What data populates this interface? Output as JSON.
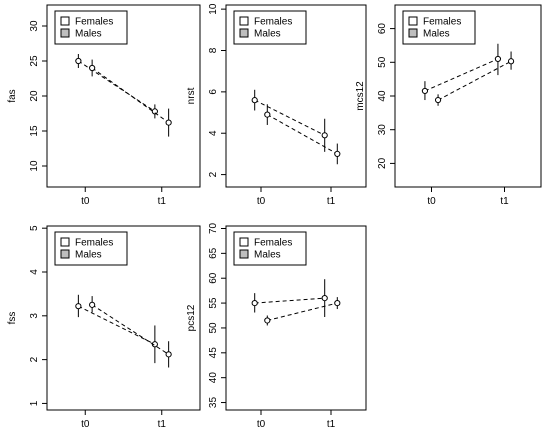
{
  "legend_labels": [
    "Females",
    "Males"
  ],
  "legend_box_colors": {
    "Females": "#ffffff",
    "Males": "#bebebe"
  },
  "chart_data": [
    {
      "type": "line",
      "ylabel": "fas",
      "ylim": [
        7,
        33
      ],
      "yticks": [
        10,
        15,
        20,
        25,
        30
      ],
      "categories": [
        "t0",
        "t1"
      ],
      "legend": "top-left",
      "grid": false,
      "series": [
        {
          "name": "Females",
          "values": [
            25.0,
            17.8
          ],
          "lower": [
            24.0,
            16.8
          ],
          "upper": [
            26.0,
            18.8
          ]
        },
        {
          "name": "Males",
          "values": [
            24.0,
            16.2
          ],
          "lower": [
            22.8,
            14.2
          ],
          "upper": [
            25.2,
            18.2
          ]
        }
      ]
    },
    {
      "type": "line",
      "ylabel": "nrst",
      "ylim": [
        1.4,
        10.2
      ],
      "yticks": [
        2,
        4,
        6,
        8,
        10
      ],
      "categories": [
        "t0",
        "t1"
      ],
      "legend": "top-left",
      "grid": false,
      "series": [
        {
          "name": "Females",
          "values": [
            5.6,
            3.9
          ],
          "lower": [
            5.1,
            3.1
          ],
          "upper": [
            6.1,
            4.7
          ]
        },
        {
          "name": "Males",
          "values": [
            4.9,
            3.0
          ],
          "lower": [
            4.4,
            2.5
          ],
          "upper": [
            5.4,
            3.5
          ]
        }
      ]
    },
    {
      "type": "line",
      "ylabel": "mcs12",
      "ylim": [
        13,
        67
      ],
      "yticks": [
        20,
        30,
        40,
        50,
        60
      ],
      "categories": [
        "t0",
        "t1"
      ],
      "legend": "top-left",
      "grid": false,
      "series": [
        {
          "name": "Females",
          "values": [
            41.5,
            51.0
          ],
          "lower": [
            38.8,
            46.2
          ],
          "upper": [
            44.4,
            55.5
          ]
        },
        {
          "name": "Males",
          "values": [
            38.8,
            50.3
          ],
          "lower": [
            37.1,
            47.8
          ],
          "upper": [
            40.5,
            53.2
          ]
        }
      ]
    },
    {
      "type": "line",
      "ylabel": "fss",
      "ylim": [
        0.85,
        5.05
      ],
      "yticks": [
        1,
        2,
        3,
        4,
        5
      ],
      "categories": [
        "t0",
        "t1"
      ],
      "legend": "top-left",
      "grid": false,
      "series": [
        {
          "name": "Females",
          "values": [
            3.22,
            2.35
          ],
          "lower": [
            2.97,
            1.92
          ],
          "upper": [
            3.48,
            2.78
          ]
        },
        {
          "name": "Males",
          "values": [
            3.25,
            2.12
          ],
          "lower": [
            3.08,
            1.82
          ],
          "upper": [
            3.45,
            2.42
          ]
        }
      ]
    },
    {
      "type": "line",
      "ylabel": "pcs12",
      "ylim": [
        33.5,
        70.5
      ],
      "yticks": [
        35,
        40,
        45,
        50,
        55,
        60,
        65,
        70
      ],
      "categories": [
        "t0",
        "t1"
      ],
      "legend": "top-left",
      "grid": false,
      "series": [
        {
          "name": "Females",
          "values": [
            55.0,
            56.0
          ],
          "lower": [
            53.1,
            52.2
          ],
          "upper": [
            57.0,
            59.8
          ]
        },
        {
          "name": "Males",
          "values": [
            51.5,
            55.0
          ],
          "lower": [
            50.5,
            53.8
          ],
          "upper": [
            52.5,
            56.2
          ]
        }
      ]
    }
  ]
}
